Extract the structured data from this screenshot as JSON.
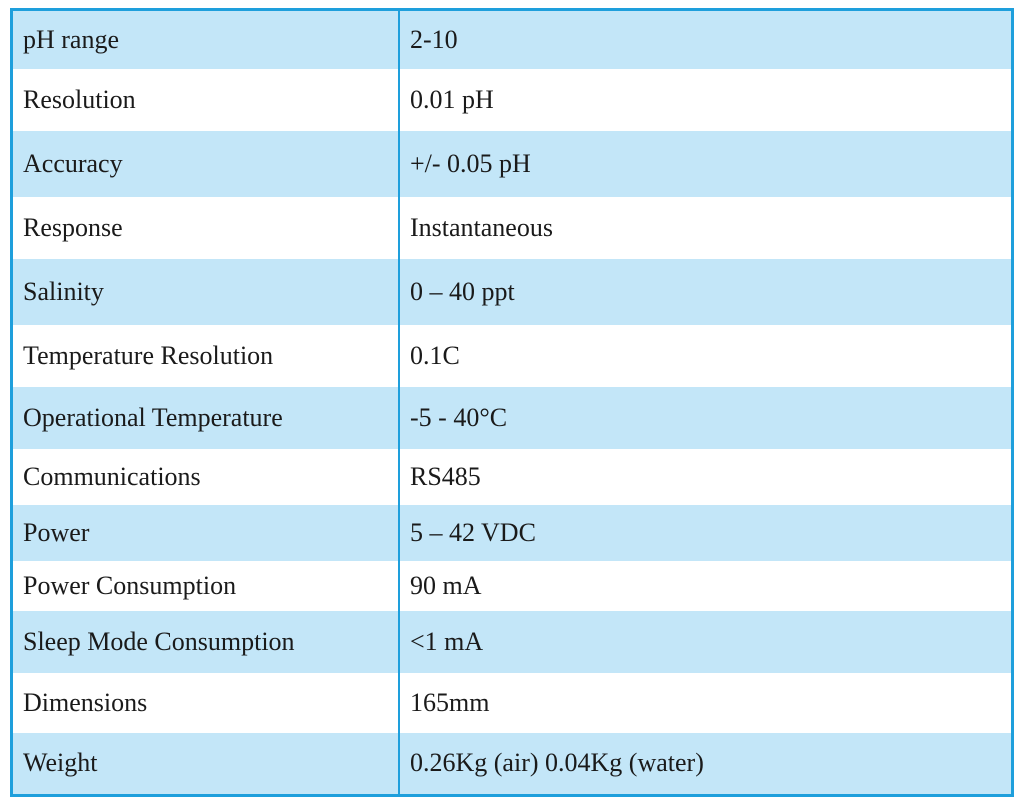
{
  "table": {
    "rows": [
      {
        "label": "pH range",
        "value": "2-10"
      },
      {
        "label": "Resolution",
        "value": "0.01 pH"
      },
      {
        "label": "Accuracy",
        "value": "+/- 0.05 pH"
      },
      {
        "label": "Response",
        "value": "Instantaneous"
      },
      {
        "label": "Salinity",
        "value": "0 – 40 ppt"
      },
      {
        "label": "Temperature Resolution",
        "value": "0.1C"
      },
      {
        "label": "Operational Temperature",
        "value": "-5 - 40°C"
      },
      {
        "label": "Communications",
        "value": "RS485"
      },
      {
        "label": "Power",
        "value": "5 – 42 VDC"
      },
      {
        "label": "Power Consumption",
        "value": "90 mA"
      },
      {
        "label": "Sleep Mode Consumption",
        "value": "<1 mA"
      },
      {
        "label": "Dimensions",
        "value": "165mm"
      },
      {
        "label": "Weight",
        "value": "0.26Kg (air) 0.04Kg (water)"
      }
    ]
  },
  "colors": {
    "border": "#1e9fdc",
    "row_shade": "#c3e6f8",
    "row_plain": "#ffffff",
    "text": "#1a1a1a"
  }
}
